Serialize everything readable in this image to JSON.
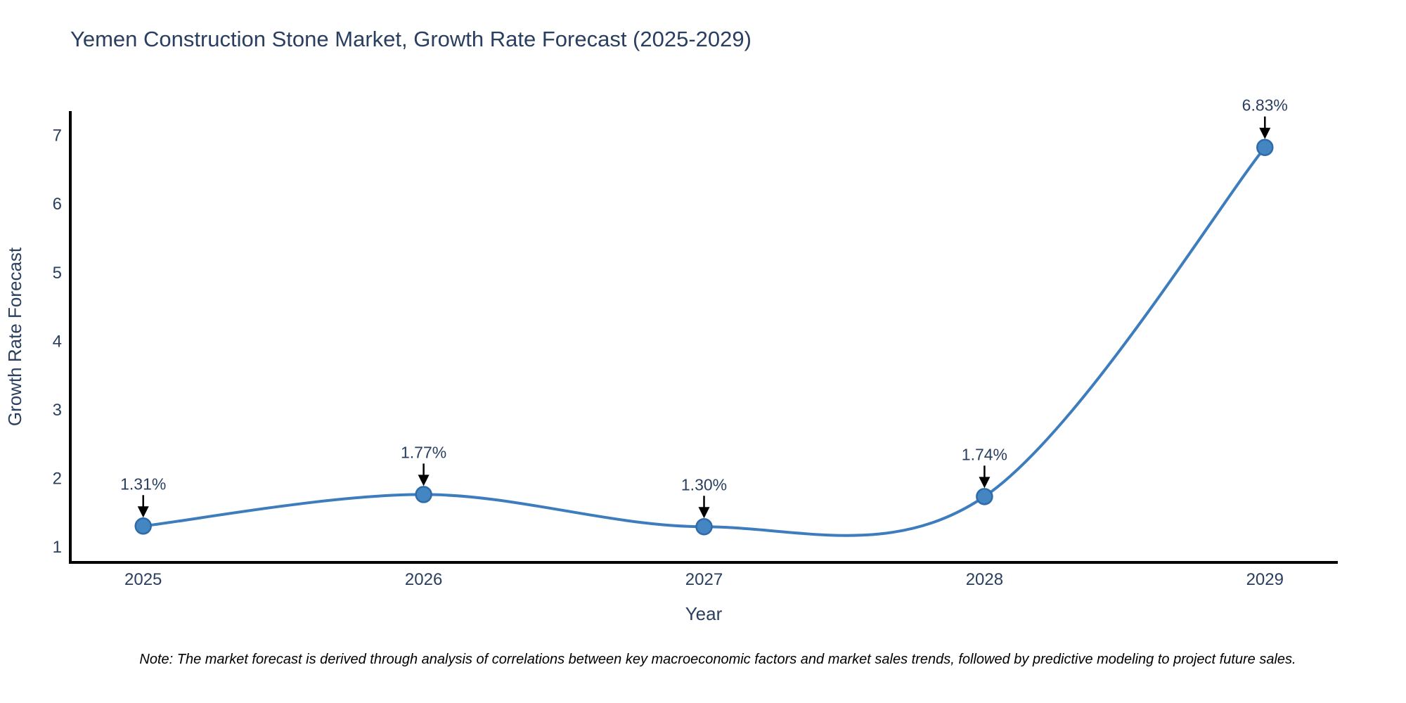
{
  "chart_data": {
    "type": "line",
    "title": "Yemen Construction Stone Market, Growth Rate Forecast (2025-2029)",
    "xlabel": "Year",
    "ylabel": "Growth Rate Forecast",
    "x": [
      2025,
      2026,
      2027,
      2028,
      2029
    ],
    "values": [
      1.31,
      1.77,
      1.3,
      1.74,
      6.83
    ],
    "point_labels": [
      "1.31%",
      "1.77%",
      "1.30%",
      "1.74%",
      "6.83%"
    ],
    "x_tick_labels": [
      "2025",
      "2026",
      "2027",
      "2028",
      "2029"
    ],
    "y_ticks": [
      1,
      2,
      3,
      4,
      5,
      6,
      7
    ],
    "xlim": [
      2024.74,
      2029.26
    ],
    "ylim": [
      0.78,
      7.36
    ],
    "grid": false,
    "line_shape": "spline",
    "legend": "none",
    "colors": {
      "line": "#3d7dbd",
      "marker_fill": "#4486c2",
      "marker_edge": "#2f6ba8",
      "text": "#2a3f5f",
      "axis_line": "#000000",
      "arrow": "#000000",
      "background": "#ffffff"
    },
    "note": "Note: The market forecast is derived through analysis of correlations between key macroeconomic factors and market sales trends, followed by predictive modeling to project future sales."
  }
}
